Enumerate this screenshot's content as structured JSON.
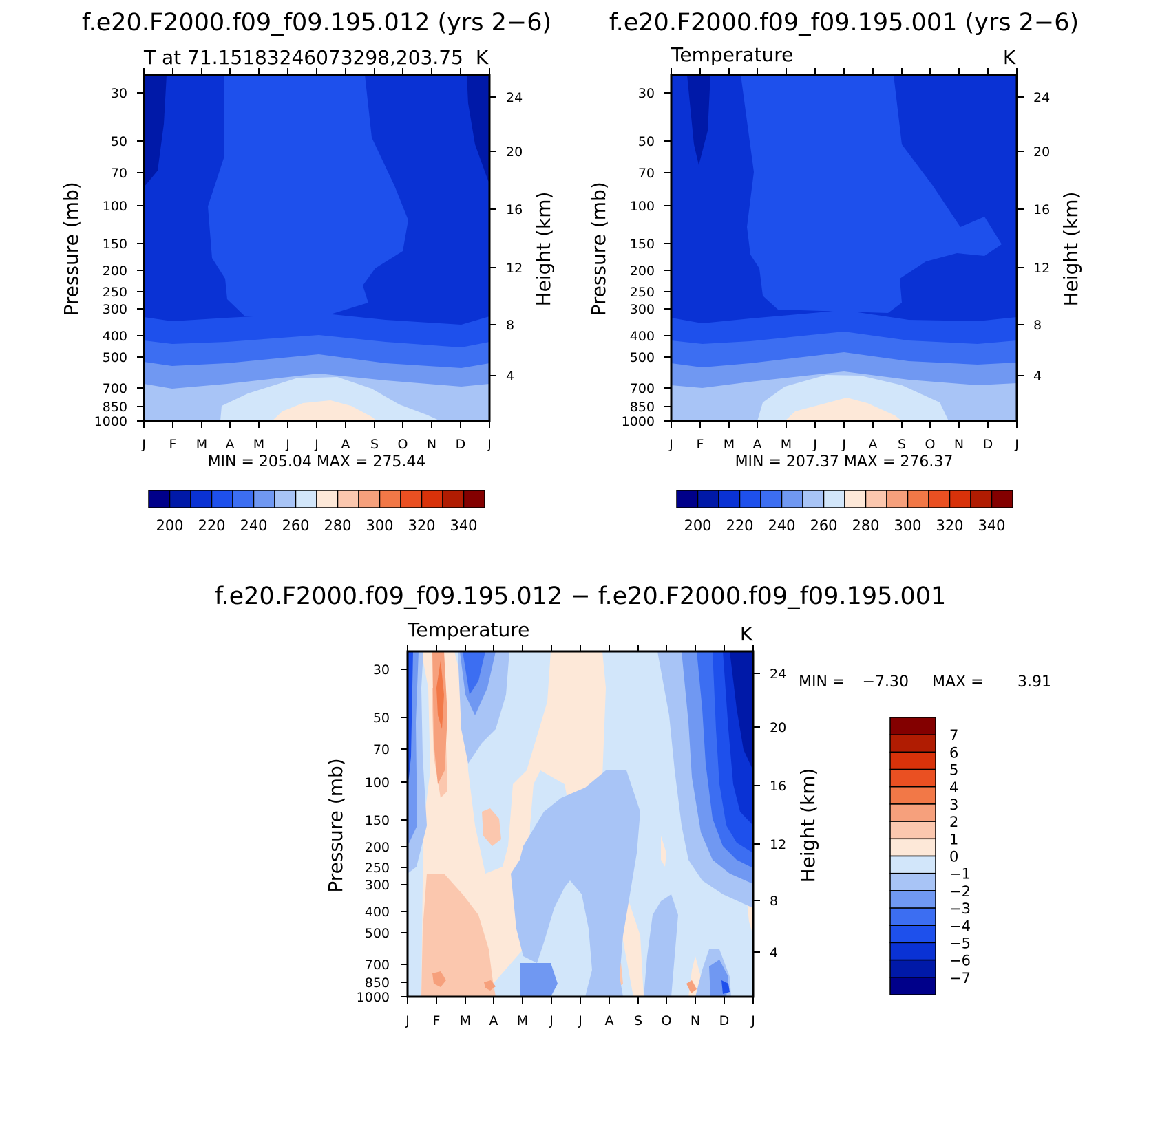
{
  "plots": [
    {
      "title": "f.e20.F2000.f09_f09.195.012 (yrs 2−6)",
      "left_label": "T at 71.15183246073298,203.75",
      "right_label": "K",
      "ylabel": "Pressure (mb)",
      "ylabel2": "Height (km)",
      "stats": "MIN = 205.04 MAX = 275.44"
    },
    {
      "title": "f.e20.F2000.f09_f09.195.001 (yrs 2−6)",
      "left_label": "Temperature",
      "right_label": "K",
      "ylabel": "Pressure (mb)",
      "ylabel2": "Height (km)",
      "stats": "MIN = 207.37 MAX = 276.37"
    },
    {
      "title": "f.e20.F2000.f09_f09.195.012 − f.e20.F2000.f09_f09.195.001",
      "left_label": "Temperature",
      "right_label": "K",
      "ylabel": "Pressure (mb)",
      "ylabel2": "Height (km)",
      "stats_label_min": "MIN =",
      "stats_min": "−7.30",
      "stats_label_max": "MAX =",
      "stats_max": "3.91"
    }
  ],
  "chart_data": [
    {
      "type": "heatmap",
      "title": "f.e20.F2000.f09_f09.195.012 (yrs 2−6)",
      "xlabel": "",
      "ylabel": "Pressure (mb)",
      "ylabel_right": "Height (km)",
      "x_ticks": [
        "J",
        "F",
        "M",
        "A",
        "M",
        "J",
        "J",
        "A",
        "S",
        "O",
        "N",
        "D",
        "J"
      ],
      "y_ticks": [
        30,
        50,
        70,
        100,
        150,
        200,
        250,
        300,
        400,
        500,
        700,
        850,
        1000
      ],
      "y2_ticks": [
        24,
        20,
        16,
        12,
        8,
        4
      ],
      "y_scale": "log",
      "ylim": [
        1000,
        20
      ],
      "contour_levels": [
        200,
        210,
        220,
        230,
        240,
        250,
        260,
        270,
        280,
        290,
        300,
        310,
        320,
        330,
        340
      ],
      "colorbar_labels": [
        200,
        220,
        240,
        260,
        280,
        300,
        320,
        340
      ],
      "min": 205.04,
      "max": 275.44
    },
    {
      "type": "heatmap",
      "title": "f.e20.F2000.f09_f09.195.001 (yrs 2−6)",
      "xlabel": "",
      "ylabel": "Pressure (mb)",
      "ylabel_right": "Height (km)",
      "x_ticks": [
        "J",
        "F",
        "M",
        "A",
        "M",
        "J",
        "J",
        "A",
        "S",
        "O",
        "N",
        "D",
        "J"
      ],
      "y_ticks": [
        30,
        50,
        70,
        100,
        150,
        200,
        250,
        300,
        400,
        500,
        700,
        850,
        1000
      ],
      "y2_ticks": [
        24,
        20,
        16,
        12,
        8,
        4
      ],
      "y_scale": "log",
      "ylim": [
        1000,
        20
      ],
      "contour_levels": [
        200,
        210,
        220,
        230,
        240,
        250,
        260,
        270,
        280,
        290,
        300,
        310,
        320,
        330,
        340
      ],
      "colorbar_labels": [
        200,
        220,
        240,
        260,
        280,
        300,
        320,
        340
      ],
      "min": 207.37,
      "max": 276.37
    },
    {
      "type": "heatmap",
      "title": "f.e20.F2000.f09_f09.195.012 − f.e20.F2000.f09_f09.195.001",
      "xlabel": "",
      "ylabel": "Pressure (mb)",
      "ylabel_right": "Height (km)",
      "x_ticks": [
        "J",
        "F",
        "M",
        "A",
        "M",
        "J",
        "J",
        "A",
        "S",
        "O",
        "N",
        "D",
        "J"
      ],
      "y_ticks": [
        30,
        50,
        70,
        100,
        150,
        200,
        250,
        300,
        400,
        500,
        700,
        850,
        1000
      ],
      "y2_ticks": [
        24,
        20,
        16,
        12,
        8,
        4
      ],
      "y_scale": "log",
      "ylim": [
        1000,
        20
      ],
      "contour_levels": [
        -7,
        -6,
        -5,
        -4,
        -3,
        -2,
        -1,
        0,
        1,
        2,
        3,
        4,
        5,
        6,
        7
      ],
      "colorbar_labels": [
        "7",
        "6",
        "5",
        "4",
        "3",
        "2",
        "1",
        "0",
        "−1",
        "−2",
        "−3",
        "−4",
        "−5",
        "−6",
        "−7"
      ],
      "min": -7.3,
      "max": 3.91
    }
  ],
  "colors": {
    "temp_palette": [
      "#00008a",
      "#0019a8",
      "#0a32d4",
      "#1e50ec",
      "#3c6ef2",
      "#7098f2",
      "#a8c4f6",
      "#d2e6fa",
      "#fde8d8",
      "#fbc7ae",
      "#f6a07c",
      "#f27847",
      "#ea5022",
      "#d8320a",
      "#b01c02",
      "#830000"
    ],
    "diff_palette": [
      "#830000",
      "#b01c02",
      "#d8320a",
      "#ea5022",
      "#f27847",
      "#f6a07c",
      "#fbc7ae",
      "#fde8d8",
      "#d2e6fa",
      "#a8c4f6",
      "#7098f2",
      "#3c6ef2",
      "#1e50ec",
      "#0a32d4",
      "#0019a8",
      "#00008a"
    ]
  }
}
